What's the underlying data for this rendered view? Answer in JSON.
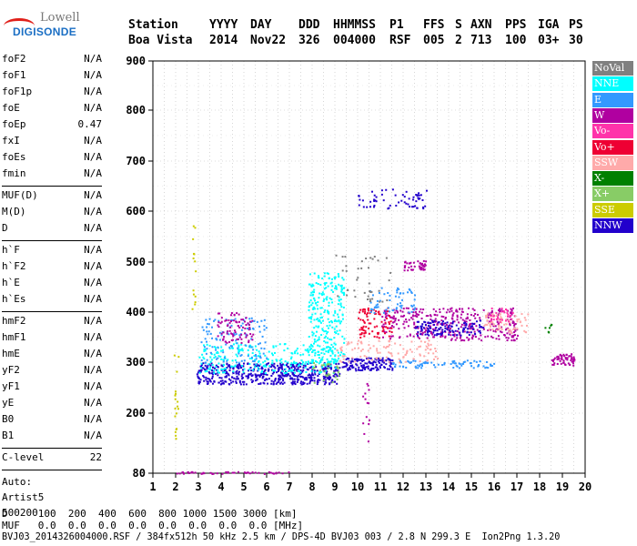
{
  "logo": {
    "line1": "Lowell",
    "line2": "DIGISONDE"
  },
  "header": {
    "row1": [
      "Station",
      "YYYY",
      "DAY",
      "DDD",
      "HHMMSS",
      "P1",
      "FFS",
      "S",
      "AXN",
      "PPS",
      "IGA",
      "PS"
    ],
    "row2": [
      "Boa Vista",
      "2014",
      "Nov22",
      "326",
      "004000",
      "RSF",
      "005",
      "2",
      "713",
      "100",
      "03+",
      "30"
    ]
  },
  "params": {
    "group1": [
      {
        "k": "foF2",
        "v": "N/A"
      },
      {
        "k": "foF1",
        "v": "N/A"
      },
      {
        "k": "foF1p",
        "v": "N/A"
      },
      {
        "k": "foE",
        "v": "N/A"
      },
      {
        "k": "foEp",
        "v": "0.47"
      },
      {
        "k": "fxI",
        "v": "N/A"
      },
      {
        "k": "foEs",
        "v": "N/A"
      },
      {
        "k": "fmin",
        "v": "N/A"
      }
    ],
    "group2": [
      {
        "k": "MUF(D)",
        "v": "N/A"
      },
      {
        "k": "M(D)",
        "v": "N/A"
      },
      {
        "k": "D",
        "v": "N/A"
      }
    ],
    "group3": [
      {
        "k": "h`F",
        "v": "N/A"
      },
      {
        "k": "h`F2",
        "v": "N/A"
      },
      {
        "k": "h`E",
        "v": "N/A"
      },
      {
        "k": "h`Es",
        "v": "N/A"
      }
    ],
    "group4": [
      {
        "k": "hmF2",
        "v": "N/A"
      },
      {
        "k": "hmF1",
        "v": "N/A"
      },
      {
        "k": "hmE",
        "v": "N/A"
      },
      {
        "k": "yF2",
        "v": "N/A"
      },
      {
        "k": "yF1",
        "v": "N/A"
      },
      {
        "k": "yE",
        "v": "N/A"
      },
      {
        "k": "B0",
        "v": "N/A"
      },
      {
        "k": "B1",
        "v": "N/A"
      }
    ],
    "group5": [
      {
        "k": "C-level",
        "v": "22"
      }
    ]
  },
  "auto": {
    "line1": "Auto:",
    "line2": "Artist5",
    "line3": "500200"
  },
  "bottom": {
    "dline": "D     100  200  400  600  800 1000 1500 3000 [km]",
    "mufline": "MUF   0.0  0.0  0.0  0.0  0.0  0.0  0.0  0.0 [MHz]",
    "footer": "BVJ03_2014326004000.RSF / 384fx512h 50 kHz 2.5 km / DPS-4D BVJ03 003 / 2.8 N 299.3 E  Ion2Png 1.3.20"
  },
  "legend": [
    {
      "label": "NoVal",
      "color": "#808080"
    },
    {
      "label": "NNE",
      "color": "#00ffff"
    },
    {
      "label": "E",
      "color": "#3399ff"
    },
    {
      "label": "W",
      "color": "#b000a0"
    },
    {
      "label": "Vo-",
      "color": "#ff33aa"
    },
    {
      "label": "Vo+",
      "color": "#ee0033"
    },
    {
      "label": "SSW",
      "color": "#ffaaaa"
    },
    {
      "label": "X-",
      "color": "#008000"
    },
    {
      "label": "X+",
      "color": "#88cc66"
    },
    {
      "label": "SSE",
      "color": "#cccc00"
    },
    {
      "label": "NNW",
      "color": "#2200cc"
    }
  ],
  "chart_data": {
    "type": "scatter",
    "xlabel": "",
    "ylabel": "",
    "xlim": [
      1,
      20
    ],
    "ylim": [
      80,
      900
    ],
    "xticks": [
      "1",
      "2",
      "3",
      "4",
      "5",
      "6",
      "7",
      "8",
      "9",
      "10",
      "11",
      "12",
      "13",
      "14",
      "15",
      "16",
      "17",
      "18",
      "19",
      "20"
    ],
    "yticks": [
      "80",
      "200",
      "300",
      "400",
      "500",
      "600",
      "700",
      "800",
      "900"
    ],
    "ytick_values": [
      80,
      200,
      300,
      400,
      500,
      600,
      700,
      800,
      900
    ],
    "grid": true,
    "legend_placement": "right",
    "clusters": [
      {
        "color": "#2200cc",
        "x": [
          2.9,
          9.2
        ],
        "y": [
          258,
          300
        ],
        "n": 520
      },
      {
        "color": "#00ffff",
        "x": [
          3.0,
          9.0
        ],
        "y": [
          280,
          340
        ],
        "n": 260
      },
      {
        "color": "#00ffff",
        "x": [
          7.8,
          9.4
        ],
        "y": [
          300,
          480
        ],
        "n": 260
      },
      {
        "color": "#3399ff",
        "x": [
          3.1,
          6.0
        ],
        "y": [
          300,
          390
        ],
        "n": 120
      },
      {
        "color": "#b000a0",
        "x": [
          11.0,
          17.0
        ],
        "y": [
          345,
          410
        ],
        "n": 360
      },
      {
        "color": "#ee0033",
        "x": [
          10.0,
          11.5
        ],
        "y": [
          350,
          410
        ],
        "n": 80
      },
      {
        "color": "#2200cc",
        "x": [
          9.3,
          11.5
        ],
        "y": [
          285,
          310
        ],
        "n": 140
      },
      {
        "color": "#ffaaaa",
        "x": [
          9.0,
          13.5
        ],
        "y": [
          300,
          345
        ],
        "n": 110
      },
      {
        "color": "#ffaaaa",
        "x": [
          15.5,
          17.5
        ],
        "y": [
          360,
          400
        ],
        "n": 70
      },
      {
        "color": "#3399ff",
        "x": [
          10.5,
          12.5
        ],
        "y": [
          400,
          450
        ],
        "n": 60
      },
      {
        "color": "#3399ff",
        "x": [
          11.5,
          16.0
        ],
        "y": [
          290,
          305
        ],
        "n": 80
      },
      {
        "color": "#2200cc",
        "x": [
          10.0,
          13.0
        ],
        "y": [
          605,
          645
        ],
        "n": 60
      },
      {
        "color": "#2200cc",
        "x": [
          12.5,
          15.5
        ],
        "y": [
          355,
          385
        ],
        "n": 120
      },
      {
        "color": "#b000a0",
        "x": [
          18.5,
          19.5
        ],
        "y": [
          295,
          318
        ],
        "n": 60
      },
      {
        "color": "#b000a0",
        "x": [
          12.0,
          13.0
        ],
        "y": [
          485,
          505
        ],
        "n": 40
      },
      {
        "color": "#b000a0",
        "x": [
          2.0,
          7.0
        ],
        "y": [
          80,
          84
        ],
        "n": 50
      },
      {
        "color": "#cccc00",
        "x": [
          1.9,
          2.1
        ],
        "y": [
          150,
          320
        ],
        "n": 18
      },
      {
        "color": "#cccc00",
        "x": [
          2.7,
          2.85
        ],
        "y": [
          400,
          580
        ],
        "n": 14
      },
      {
        "color": "#88cc66",
        "x": [
          8.0,
          9.2
        ],
        "y": [
          260,
          300
        ],
        "n": 30
      },
      {
        "color": "#008000",
        "x": [
          18.2,
          18.5
        ],
        "y": [
          360,
          380
        ],
        "n": 6
      },
      {
        "color": "#b000a0",
        "x": [
          3.8,
          5.4
        ],
        "y": [
          340,
          400
        ],
        "n": 80
      },
      {
        "color": "#ff33aa",
        "x": [
          15.8,
          16.8
        ],
        "y": [
          380,
          410
        ],
        "n": 30
      },
      {
        "color": "#b000a0",
        "x": [
          10.2,
          10.5
        ],
        "y": [
          140,
          260
        ],
        "n": 14
      },
      {
        "color": "#808080",
        "x": [
          9.0,
          11.5
        ],
        "y": [
          420,
          520
        ],
        "n": 40
      }
    ]
  }
}
